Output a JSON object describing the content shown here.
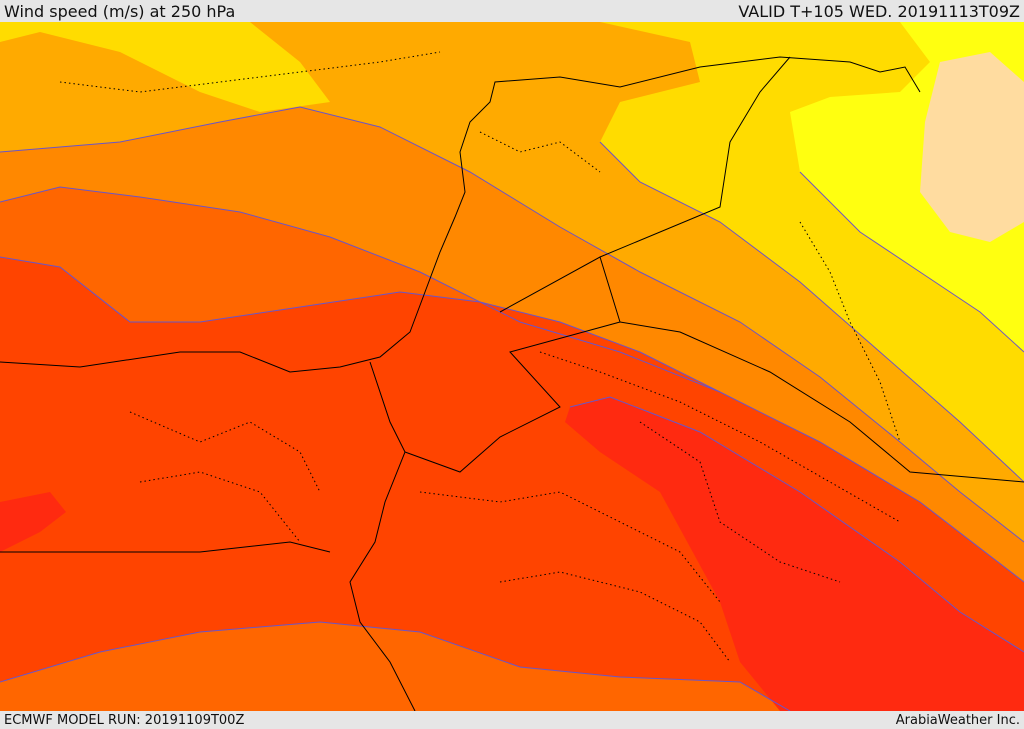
{
  "header": {
    "title": "Wind speed (m/s) at 250 hPa",
    "valid": "VALID T+105 WED. 20191113T09Z"
  },
  "footer": {
    "model_run": "ECMWF MODEL RUN: 20191109T00Z",
    "credit": "ArabiaWeather Inc."
  },
  "colors": {
    "band_1": "#ffdca0",
    "band_2": "#ffff10",
    "band_3": "#ffdc00",
    "band_4": "#ffaa00",
    "band_5": "#ff8800",
    "band_6": "#ff6600",
    "band_7": "#ff4400",
    "band_8": "#ff2a10",
    "contour": "#6a55c8",
    "border": "#000000",
    "bar": "#e6e6e6"
  }
}
